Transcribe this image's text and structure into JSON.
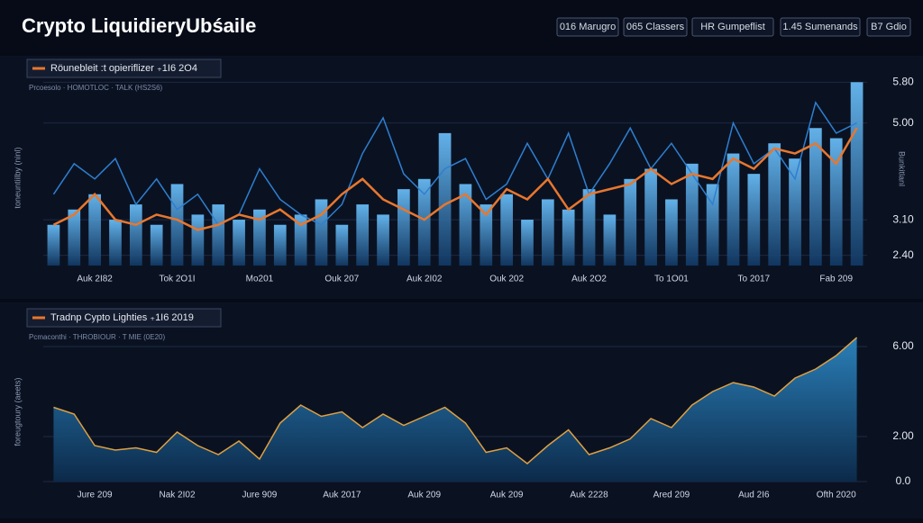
{
  "header": {
    "title": "Crypto LiquidieryUbśaile",
    "buttons": [
      "016 Marugro",
      "065 Classers",
      "HR Gumpeflist",
      "1.45 Sumenands",
      "B7 Gdio"
    ]
  },
  "chart_data": [
    {
      "type": "combo",
      "legend": "Röunebleit :t opieriflizer ₊1I6 2O4",
      "subtitle": "Prcoesolo · HOMOTLOC · TALK (HS2S6)",
      "ylabel": "toneuntiilby (ninl)",
      "y2label": "Bunkitlanl",
      "categories": [
        null,
        null,
        "Auk 2I82",
        null,
        null,
        null,
        "Tok 2O1I",
        null,
        null,
        null,
        "Mo201",
        null,
        null,
        null,
        "Ouk 207",
        null,
        null,
        null,
        "Auk 2I02",
        null,
        null,
        null,
        "Ouk 202",
        null,
        null,
        null,
        "Auk 2O2",
        null,
        null,
        null,
        "To 1O01",
        null,
        null,
        null,
        "To 2017",
        null,
        null,
        null,
        "Fab 209",
        null
      ],
      "ylim": [
        2.2,
        6.0
      ],
      "yticks": [
        {
          "value": 5.8,
          "label": "5.80"
        },
        {
          "value": 5.0,
          "label": "5.00"
        },
        {
          "value": 3.1,
          "label": "3.10"
        },
        {
          "value": 2.4,
          "label": "2.40"
        }
      ],
      "series": [
        {
          "kind": "bar",
          "color": "#3d8fd6",
          "values": [
            3.0,
            3.3,
            3.6,
            3.1,
            3.4,
            3.0,
            3.8,
            3.2,
            3.4,
            3.1,
            3.3,
            3.0,
            3.2,
            3.5,
            3.0,
            3.4,
            3.2,
            3.7,
            3.9,
            4.8,
            3.8,
            3.4,
            3.6,
            3.1,
            3.5,
            3.3,
            3.7,
            3.2,
            3.9,
            4.1,
            3.5,
            4.2,
            3.8,
            4.4,
            4.0,
            4.6,
            4.3,
            4.9,
            4.7,
            5.8
          ]
        },
        {
          "kind": "line",
          "color": "#2f7fd0",
          "values": [
            3.6,
            4.2,
            3.9,
            4.3,
            3.4,
            3.9,
            3.3,
            3.6,
            3.0,
            3.2,
            4.1,
            3.5,
            3.2,
            3.0,
            3.4,
            4.4,
            5.1,
            4.0,
            3.6,
            4.1,
            4.3,
            3.5,
            3.8,
            4.6,
            3.9,
            4.8,
            3.6,
            4.2,
            4.9,
            4.1,
            4.6,
            4.0,
            3.4,
            5.0,
            4.2,
            4.5,
            3.9,
            5.4,
            4.8,
            5.0
          ]
        },
        {
          "kind": "line",
          "name": "Röunebleit :t opieriflizer ₊1I6 2O4",
          "color": "#e8772e",
          "values": [
            3.0,
            3.2,
            3.6,
            3.1,
            3.0,
            3.2,
            3.1,
            2.9,
            3.0,
            3.2,
            3.1,
            3.3,
            3.0,
            3.2,
            3.6,
            3.9,
            3.5,
            3.3,
            3.1,
            3.4,
            3.6,
            3.2,
            3.7,
            3.5,
            3.9,
            3.3,
            3.6,
            3.7,
            3.8,
            4.1,
            3.8,
            4.0,
            3.9,
            4.3,
            4.1,
            4.5,
            4.4,
            4.6,
            4.2,
            4.9
          ]
        }
      ]
    },
    {
      "type": "area",
      "subtitle": "Pcmaconthi · THROBIOUR · T MIE (0E20)",
      "ylabel": "foreugtoury (aeets)",
      "categories": [
        null,
        null,
        "Jure 209",
        null,
        null,
        null,
        "Nak 2I02",
        null,
        null,
        null,
        "Jure 909",
        null,
        null,
        null,
        "Auk 2017",
        null,
        null,
        null,
        "Auk 209",
        null,
        null,
        null,
        "Auk 209",
        null,
        null,
        null,
        "Auk 2228",
        null,
        null,
        null,
        "Ared 209",
        null,
        null,
        null,
        "Aud 2I6",
        null,
        null,
        null,
        "Ofth 2020",
        null
      ],
      "ylim": [
        0,
        7
      ],
      "yticks": [
        {
          "value": 6.0,
          "label": "6.00"
        },
        {
          "value": 2.0,
          "label": "2.00"
        },
        {
          "value": 0,
          "label": "0.0"
        }
      ],
      "series": [
        {
          "name": "Tradnp Cypto Lighties ₊1I6 2019",
          "color": "#e0a040",
          "values": [
            3.3,
            3.0,
            1.6,
            1.4,
            1.5,
            1.3,
            2.2,
            1.6,
            1.2,
            1.8,
            1.0,
            2.6,
            3.4,
            2.9,
            3.1,
            2.4,
            3.0,
            2.5,
            2.9,
            3.3,
            2.6,
            1.3,
            1.5,
            0.8,
            1.6,
            2.3,
            1.2,
            1.5,
            1.9,
            2.8,
            2.4,
            3.4,
            4.0,
            4.4,
            4.2,
            3.8,
            4.6,
            5.0,
            5.6,
            6.4
          ]
        }
      ]
    }
  ]
}
